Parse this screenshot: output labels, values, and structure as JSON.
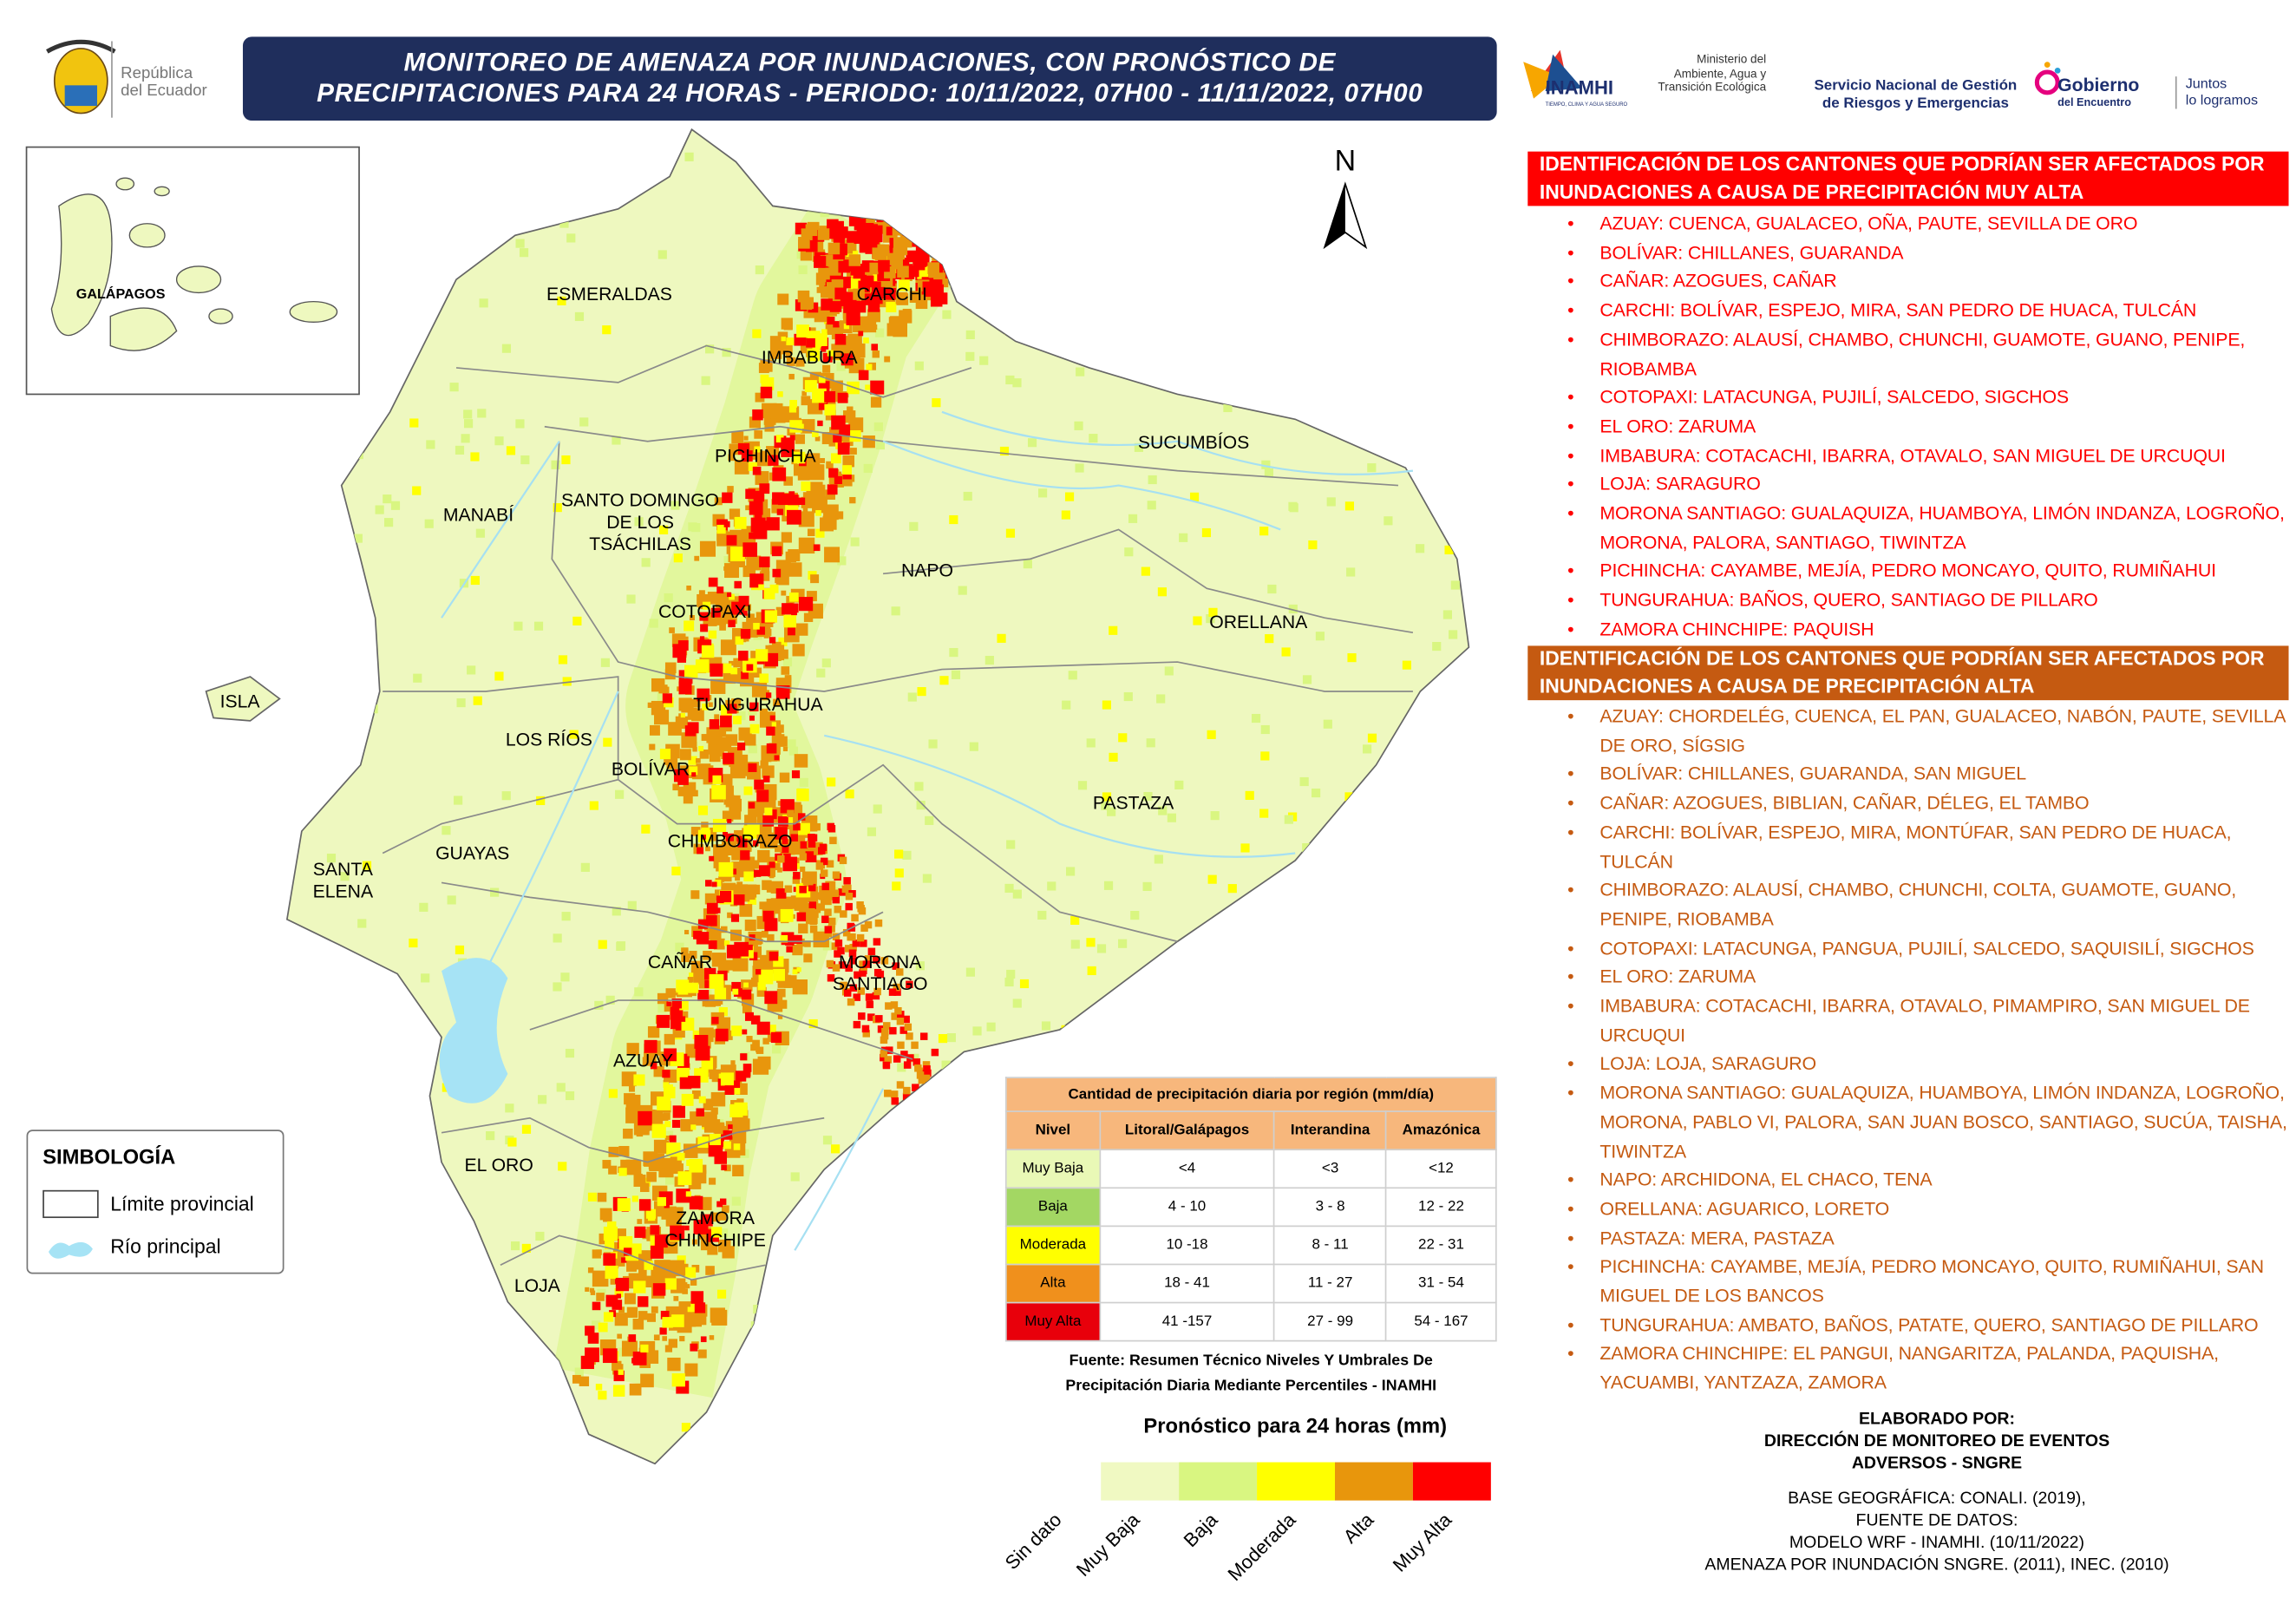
{
  "header": {
    "title_lines": [
      "MONITOREO DE AMENAZA POR INUNDACIONES, CON PRONÓSTICO DE",
      "PRECIPITACIONES  PARA 24  HORAS - PERIODO: 10/11/2022, 07H00 - 11/11/2022, 07H00"
    ],
    "republic": [
      "República",
      "del Ecuador"
    ],
    "inamhi": "INAMHI",
    "inamhi_motto": "TIEMPO, CLIMA Y AGUA SEGURO",
    "ministry": [
      "Ministerio del",
      "Ambiente, Agua y",
      "Transición Ecológica"
    ],
    "sngre": [
      "Servicio Nacional de Gestión",
      "de Riesgos y Emergencias"
    ],
    "gobierno": [
      "Gobierno",
      "del Encuentro"
    ],
    "juntos": [
      "Juntos",
      "lo logramos"
    ]
  },
  "map": {
    "north": "N",
    "inset_label": "GALÁPAGOS",
    "labels": [
      [
        "ESMERALDAS"
      ],
      [
        "CARCHI"
      ],
      [
        "IMBABURA"
      ],
      [
        "SUCUMBÍOS"
      ],
      [
        "PICHINCHA"
      ],
      [
        "MANABÍ"
      ],
      [
        "SANTO DOMINGO",
        "DE LOS",
        "TSÁCHILAS"
      ],
      [
        "NAPO"
      ],
      [
        "COTOPAXI"
      ],
      [
        "ORELLANA"
      ],
      [
        "ISLA"
      ],
      [
        "TUNGURAHUA"
      ],
      [
        "LOS RÍOS"
      ],
      [
        "BOLÍVAR"
      ],
      [
        "PASTAZA"
      ],
      [
        "CHIMBORAZO"
      ],
      [
        "GUAYAS"
      ],
      [
        "SANTA",
        "ELENA"
      ],
      [
        "CAÑAR"
      ],
      [
        "MORONA",
        "SANTIAGO"
      ],
      [
        "AZUAY"
      ],
      [
        "EL ORO"
      ],
      [
        "ZAMORA",
        "CHINCHIPE"
      ],
      [
        "LOJA"
      ]
    ]
  },
  "symbology": {
    "title": "SIMBOLOGÍA",
    "items": [
      "Límite provincial",
      "Río principal"
    ]
  },
  "table": {
    "title": "Cantidad de precipitación diaria por región (mm/día)",
    "headers": [
      "Nivel",
      "Litoral/Galápagos",
      "Interandina",
      "Amazónica"
    ],
    "rows": [
      {
        "color": "#e9f8b6",
        "cells": [
          "Muy Baja",
          "<4",
          "<3",
          "<12"
        ]
      },
      {
        "color": "#a3d763",
        "cells": [
          "Baja",
          "4 - 10",
          "3 - 8",
          "12 - 22"
        ]
      },
      {
        "color": "#ffff00",
        "cells": [
          "Moderada",
          "10 -18",
          "8 - 11",
          "22 - 31"
        ]
      },
      {
        "color": "#f0901c",
        "cells": [
          "Alta",
          "18 - 41",
          "11 - 27",
          "31 - 54"
        ]
      },
      {
        "color": "#e8000b",
        "cells": [
          "Muy Alta",
          "41 -157",
          "27 - 99",
          "54 - 167"
        ]
      }
    ],
    "source_lines": [
      "Fuente: Resumen Técnico Niveles Y Umbrales De",
      "Precipitación Diaria Mediante Percentiles - INAMHI"
    ]
  },
  "forecast_legend": {
    "title": "Pronóstico para 24 horas (mm)",
    "colors": [
      "#f0f9c2",
      "#d9f681",
      "#ffff00",
      "#e8960c",
      "#ff0000"
    ],
    "labels": [
      "Sin dato",
      "Muy Baja",
      "Baja",
      "Moderada",
      "Alta",
      "Muy Alta"
    ]
  },
  "sections": [
    {
      "heading": "IDENTIFICACIÓN DE LOS CANTONES QUE PODRÍAN SER AFECTADOS POR INUNDACIONES A CAUSA DE  PRECIPITACIÓN MUY ALTA",
      "color": "#ff0000",
      "items": [
        "AZUAY: CUENCA, GUALACEO, OÑA, PAUTE, SEVILLA DE ORO",
        "BOLÍVAR: CHILLANES, GUARANDA",
        "CAÑAR: AZOGUES, CAÑAR",
        "CARCHI: BOLÍVAR, ESPEJO, MIRA, SAN PEDRO DE HUACA, TULCÁN",
        "CHIMBORAZO: ALAUSÍ, CHAMBO, CHUNCHI, GUAMOTE, GUANO, PENIPE, RIOBAMBA",
        "COTOPAXI: LATACUNGA, PUJILÍ, SALCEDO, SIGCHOS",
        "EL ORO: ZARUMA",
        "IMBABURA: COTACACHI, IBARRA, OTAVALO, SAN MIGUEL DE URCUQUI",
        "LOJA: SARAGURO",
        "MORONA SANTIAGO: GUALAQUIZA, HUAMBOYA, LIMÓN INDANZA, LOGROÑO, MORONA, PALORA, SANTIAGO, TIWINTZA",
        "PICHINCHA: CAYAMBE, MEJÍA, PEDRO MONCAYO, QUITO, RUMIÑAHUI",
        "TUNGURAHUA: BAÑOS, QUERO, SANTIAGO DE PILLARO",
        "ZAMORA CHINCHIPE: PAQUISH"
      ]
    },
    {
      "heading": "IDENTIFICACIÓN DE LOS CANTONES QUE PODRÍAN SER AFECTADOS POR INUNDACIONES A CAUSA DE  PRECIPITACIÓN  ALTA",
      "color": "#c55a11",
      "items": [
        "AZUAY: CHORDELÉG, CUENCA, EL PAN, GUALACEO, NABÓN, PAUTE, SEVILLA DE ORO, SÍGSIG",
        "BOLÍVAR: CHILLANES, GUARANDA, SAN MIGUEL",
        "CAÑAR: AZOGUES, BIBLIAN, CAÑAR, DÉLEG, EL TAMBO",
        "CARCHI: BOLÍVAR, ESPEJO, MIRA, MONTÚFAR, SAN PEDRO DE HUACA, TULCÁN",
        "CHIMBORAZO: ALAUSÍ, CHAMBO, CHUNCHI, COLTA, GUAMOTE, GUANO, PENIPE, RIOBAMBA",
        "COTOPAXI: LATACUNGA, PANGUA, PUJILÍ, SALCEDO, SAQUISILÍ, SIGCHOS",
        "EL ORO: ZARUMA",
        "IMBABURA: COTACACHI, IBARRA, OTAVALO, PIMAMPIRO, SAN MIGUEL DE URCUQUI",
        "LOJA: LOJA, SARAGURO",
        "MORONA SANTIAGO: GUALAQUIZA, HUAMBOYA, LIMÓN INDANZA, LOGROÑO, MORONA, PABLO VI, PALORA, SAN JUAN BOSCO, SANTIAGO, SUCÚA, TAISHA, TIWINTZA",
        "NAPO: ARCHIDONA, EL CHACO, TENA",
        "ORELLANA: AGUARICO, LORETO",
        "PASTAZA: MERA, PASTAZA",
        "PICHINCHA: CAYAMBE, MEJÍA, PEDRO MONCAYO, QUITO, RUMIÑAHUI, SAN MIGUEL DE LOS BANCOS",
        "TUNGURAHUA: AMBATO, BAÑOS, PATATE, QUERO, SANTIAGO DE PILLARO",
        "ZAMORA CHINCHIPE: EL PANGUI, NANGARITZA, PALANDA, PAQUISHA, YACUAMBI, YANTZAZA, ZAMORA"
      ]
    }
  ],
  "credits": {
    "bold_lines": [
      "ELABORADO POR:",
      "DIRECCIÓN DE MONITOREO DE EVENTOS",
      "ADVERSOS - SNGRE"
    ],
    "lines": [
      "BASE GEOGRÁFICA: CONALI. (2019),",
      "FUENTE DE DATOS:",
      "MODELO WRF - INAMHI. (10/11/2022)",
      "AMENAZA POR INUNDACIÓN SNGRE. (2011), INEC. (2010)"
    ]
  }
}
